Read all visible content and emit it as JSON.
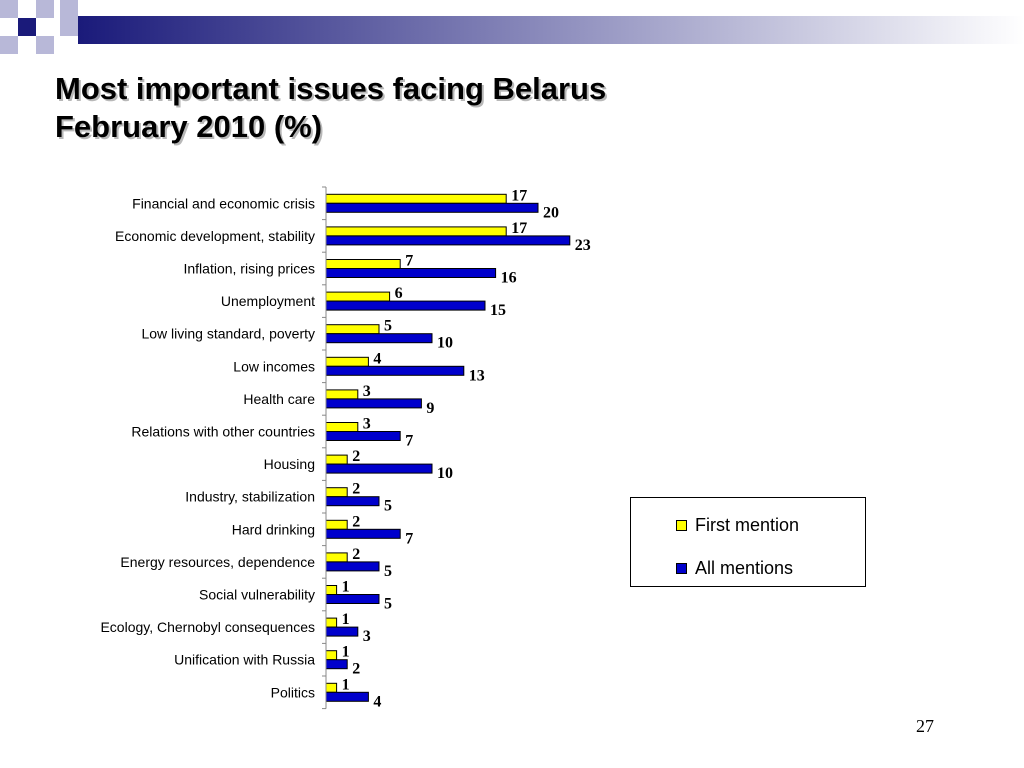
{
  "slide": {
    "title_line1": "Most important issues facing Belarus",
    "title_line2": "February 2010 (%)",
    "page_number": "27"
  },
  "colors": {
    "first_mention": "#ffff00",
    "all_mentions": "#0000cc",
    "deco_dark": "#1a1a7a",
    "deco_light": "#b8b8d8"
  },
  "chart_data": {
    "type": "bar",
    "orientation": "horizontal",
    "categories": [
      "Financial and economic crisis",
      "Economic development, stability",
      "Inflation, rising prices",
      "Unemployment",
      "Low living standard, poverty",
      "Low incomes",
      "Health care",
      "Relations with other countries",
      "Housing",
      "Industry, stabilization",
      "Hard drinking",
      "Energy resources, dependence",
      "Social vulnerability",
      "Ecology, Chernobyl consequences",
      "Unification with Russia",
      "Politics"
    ],
    "series": [
      {
        "name": "First mention",
        "values": [
          17,
          17,
          7,
          6,
          5,
          4,
          3,
          3,
          2,
          2,
          2,
          2,
          1,
          1,
          1,
          1
        ]
      },
      {
        "name": "All mentions",
        "values": [
          20,
          23,
          16,
          15,
          10,
          13,
          9,
          7,
          10,
          5,
          7,
          5,
          5,
          3,
          2,
          4
        ]
      }
    ],
    "title": "Most important issues facing Belarus February 2010 (%)",
    "xlabel": "",
    "ylabel": "",
    "xlim": [
      0,
      25
    ],
    "grid": false,
    "legend_position": "right"
  }
}
